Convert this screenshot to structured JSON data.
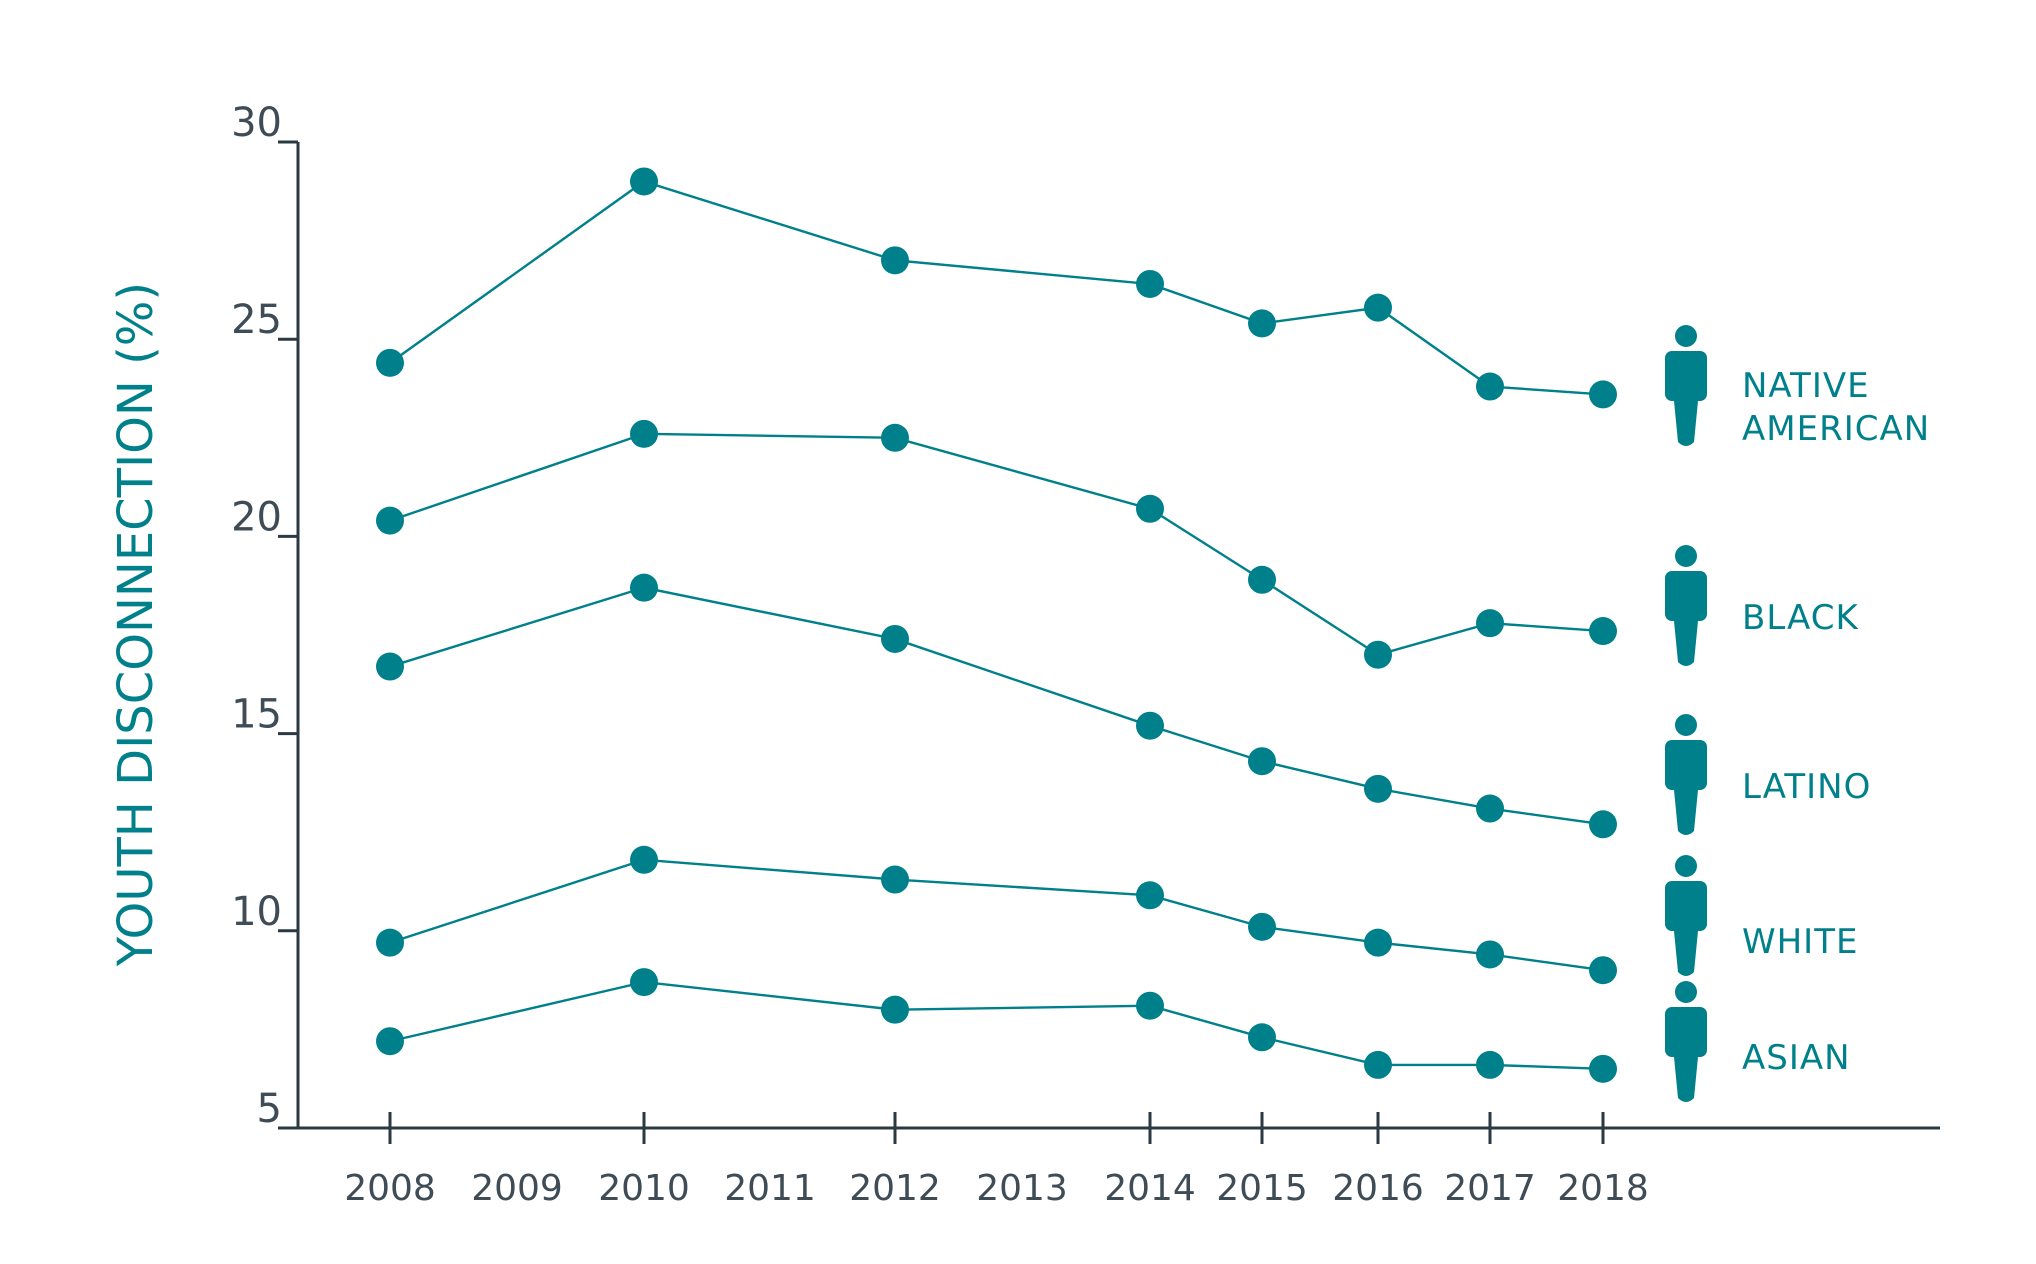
{
  "chart_data": {
    "type": "line",
    "ylabel": "YOUTH DISCONNECTION (%)",
    "xlabel": "",
    "ylim": [
      5,
      30
    ],
    "y_ticks": [
      "30",
      "25",
      "20",
      "15",
      "10",
      "5"
    ],
    "y_tick_values": [
      30,
      25,
      20,
      15,
      10,
      5
    ],
    "x_tick_labels": [
      "2008",
      "2009",
      "2010",
      "2011",
      "2012",
      "2013",
      "2014",
      "2015",
      "2016",
      "2017",
      "2018"
    ],
    "tick_mark_years": [
      2008,
      2010,
      2012,
      2014,
      2015,
      2016,
      2017,
      2018
    ],
    "x": [
      2008,
      2010,
      2012,
      2014,
      2015,
      2016,
      2017,
      2018
    ],
    "series": [
      {
        "name": "NATIVE AMERICAN",
        "label_lines": [
          "NATIVE",
          "AMERICAN"
        ],
        "values": [
          24.4,
          29.0,
          27.0,
          26.4,
          25.4,
          25.8,
          23.8,
          23.6
        ]
      },
      {
        "name": "BLACK",
        "label_lines": [
          "BLACK"
        ],
        "values": [
          20.4,
          22.6,
          22.5,
          20.7,
          18.9,
          17.0,
          17.8,
          17.6
        ]
      },
      {
        "name": "LATINO",
        "label_lines": [
          "LATINO"
        ],
        "values": [
          16.7,
          18.7,
          17.4,
          15.2,
          14.3,
          13.6,
          13.1,
          12.7
        ]
      },
      {
        "name": "WHITE",
        "label_lines": [
          "WHITE"
        ],
        "values": [
          9.7,
          11.8,
          11.3,
          10.9,
          10.1,
          9.7,
          9.4,
          9.0
        ]
      },
      {
        "name": "ASIAN",
        "label_lines": [
          "ASIAN"
        ],
        "values": [
          7.2,
          8.7,
          8.0,
          8.1,
          7.3,
          6.6,
          6.6,
          6.5
        ]
      }
    ],
    "grid": false,
    "legend": "right",
    "colors": {
      "series": "#00808a",
      "axis": "#2b3a42",
      "tick_text": "#3f4c55",
      "ylabel": "#00808a"
    }
  }
}
